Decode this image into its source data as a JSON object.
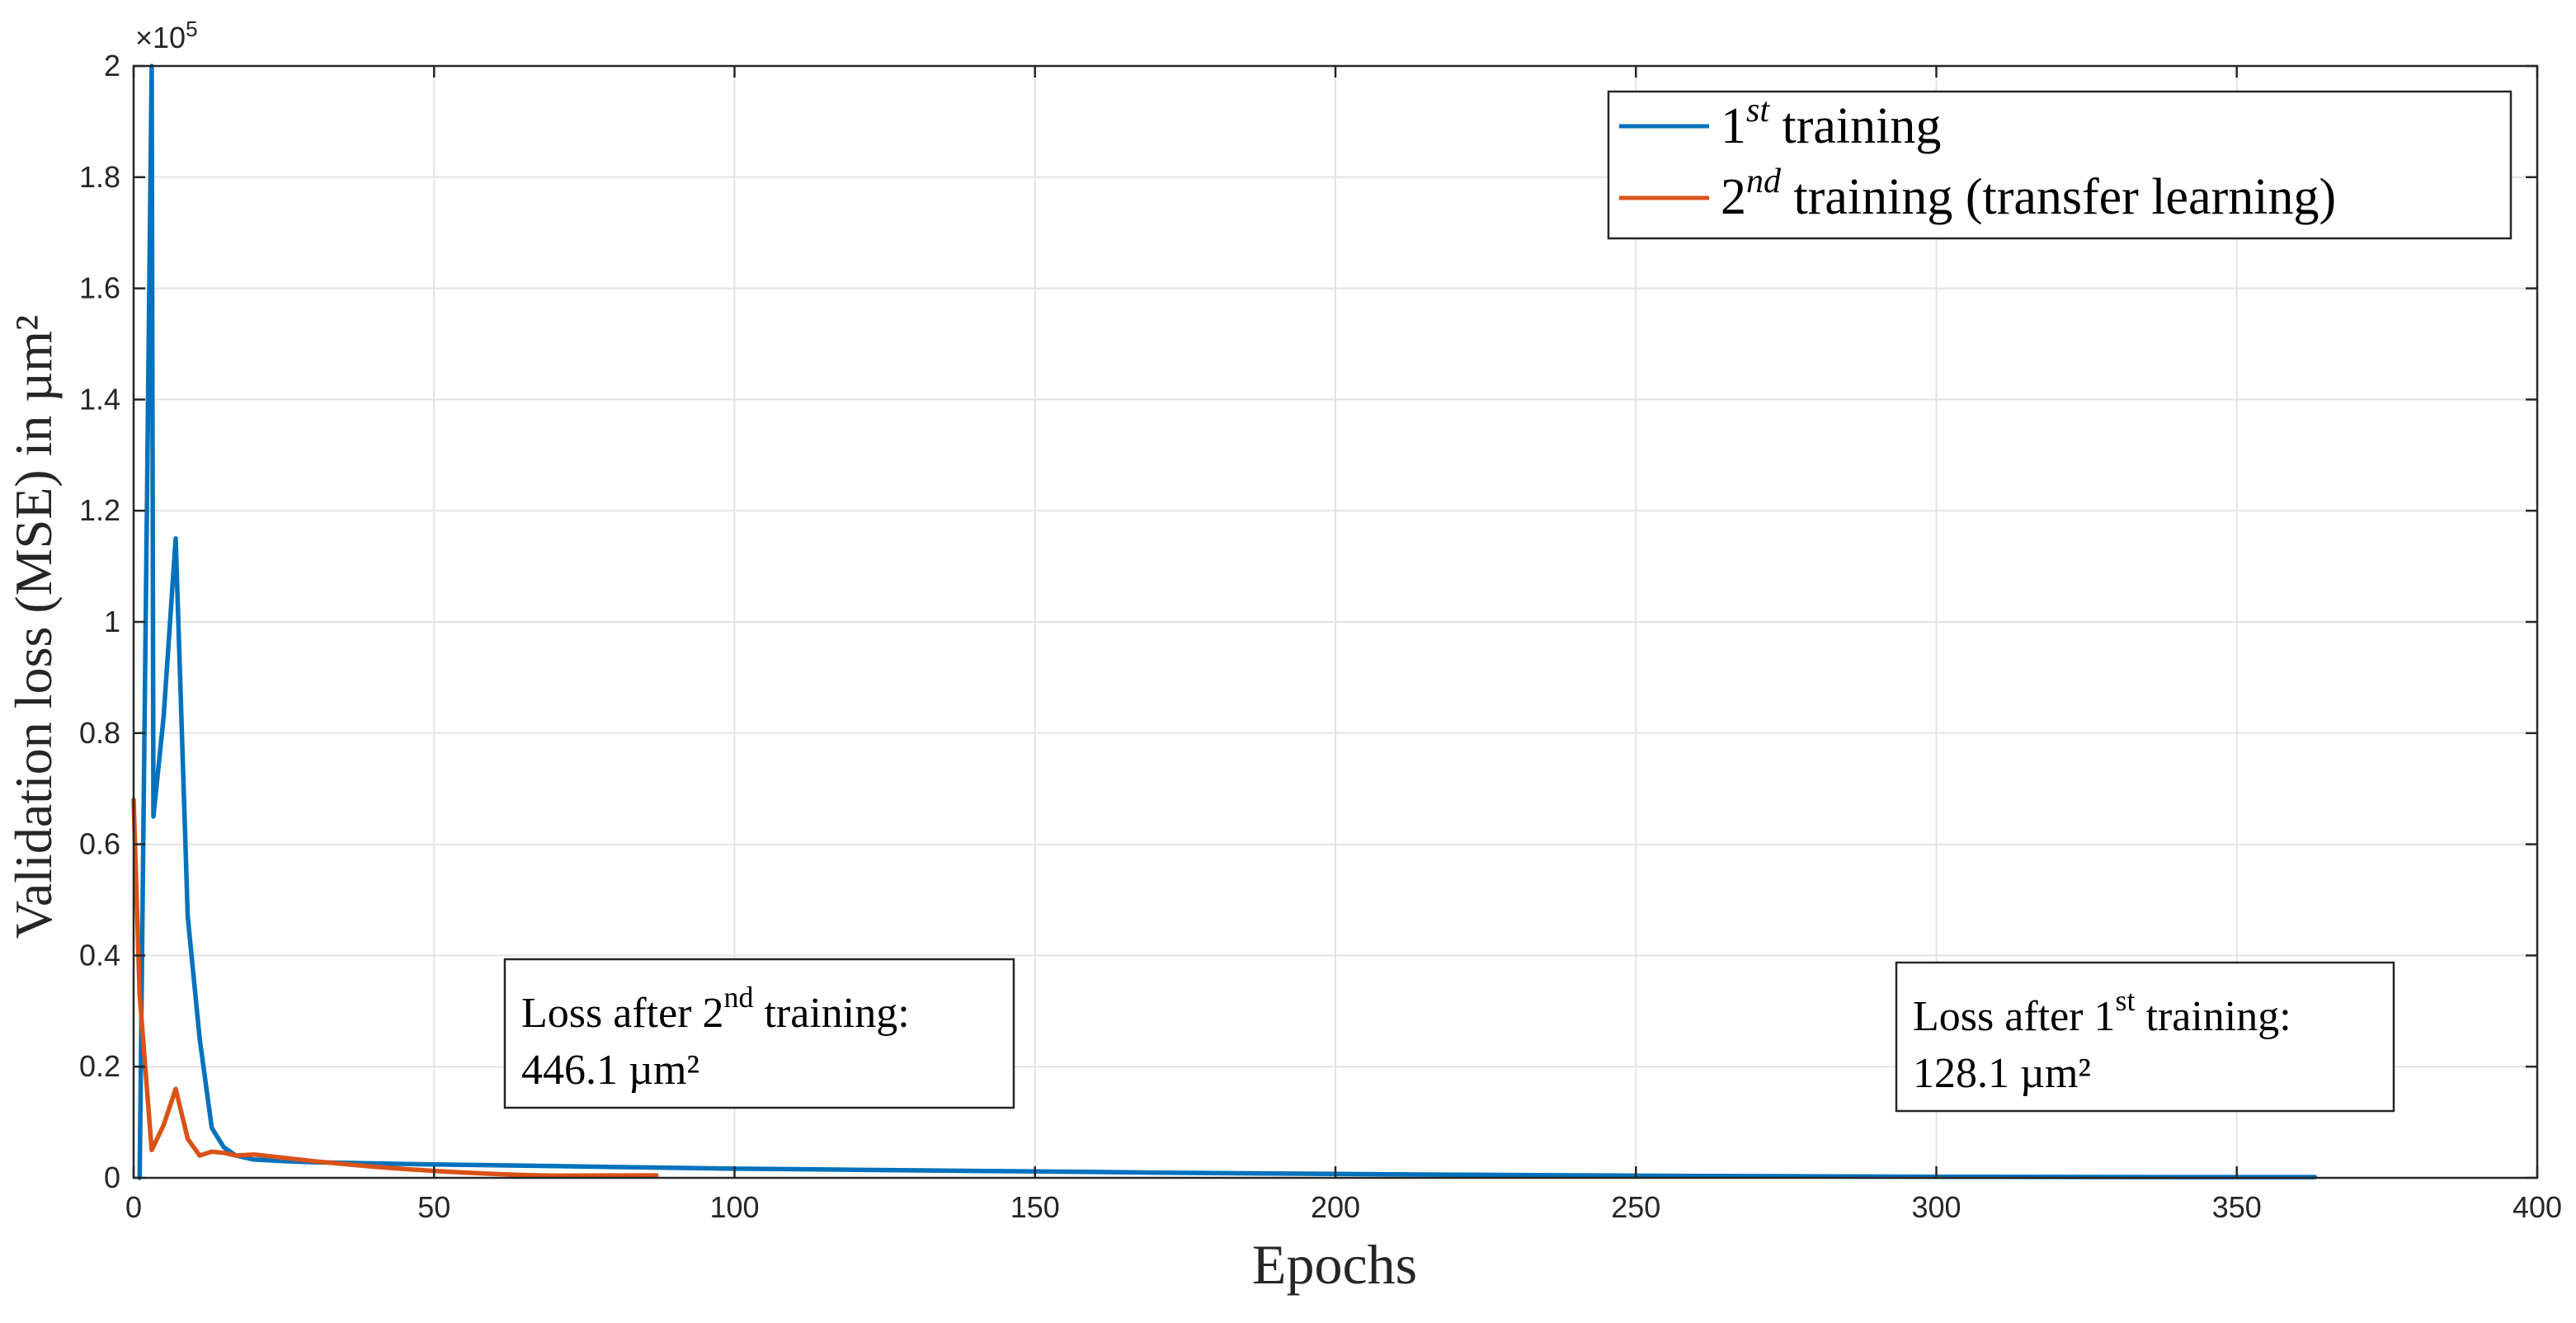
{
  "chart_data": {
    "type": "line",
    "title": "",
    "xlabel": "Epochs",
    "ylabel": "Validation loss (MSE) in µm²",
    "xlim": [
      0,
      400
    ],
    "ylim": [
      0,
      200000
    ],
    "x_ticks": [
      0,
      50,
      100,
      150,
      200,
      250,
      300,
      350,
      400
    ],
    "x_tick_labels": [
      "0",
      "50",
      "100",
      "150",
      "200",
      "250",
      "300",
      "350",
      "400"
    ],
    "y_ticks": [
      0,
      20000,
      40000,
      60000,
      80000,
      100000,
      120000,
      140000,
      160000,
      180000,
      200000
    ],
    "y_tick_labels": [
      "0",
      "0.2",
      "0.4",
      "0.6",
      "0.8",
      "1",
      "1.2",
      "1.4",
      "1.6",
      "1.8",
      "2"
    ],
    "y_exponent": {
      "prefix": "×10",
      "power": "5"
    },
    "grid": true,
    "legend_position": "top-right",
    "series": [
      {
        "name": "1st training",
        "legend": {
          "base": "1",
          "sup": "st",
          "rest": " training"
        },
        "color": "#0072BD",
        "points": [
          [
            1,
            0
          ],
          [
            3,
            200000
          ],
          [
            3.3,
            65000
          ],
          [
            5,
            83000
          ],
          [
            7,
            115000
          ],
          [
            9,
            47000
          ],
          [
            11,
            25000
          ],
          [
            13,
            9000
          ],
          [
            15,
            5500
          ],
          [
            17,
            4000
          ],
          [
            20,
            3300
          ],
          [
            25,
            3000
          ],
          [
            30,
            2800
          ],
          [
            40,
            2600
          ],
          [
            50,
            2400
          ],
          [
            60,
            2250
          ],
          [
            70,
            2100
          ],
          [
            80,
            1950
          ],
          [
            90,
            1800
          ],
          [
            100,
            1650
          ],
          [
            120,
            1450
          ],
          [
            140,
            1250
          ],
          [
            160,
            1050
          ],
          [
            180,
            850
          ],
          [
            200,
            700
          ],
          [
            220,
            560
          ],
          [
            240,
            440
          ],
          [
            260,
            340
          ],
          [
            280,
            260
          ],
          [
            300,
            200
          ],
          [
            320,
            160
          ],
          [
            340,
            140
          ],
          [
            363,
            128.1
          ]
        ]
      },
      {
        "name": "2nd training (transfer learning)",
        "legend": {
          "base": "2",
          "sup": "nd",
          "rest": " training (transfer learning)"
        },
        "color": "#D95319",
        "points": [
          [
            0,
            68000
          ],
          [
            1,
            33000
          ],
          [
            3,
            5000
          ],
          [
            5,
            9500
          ],
          [
            7,
            16000
          ],
          [
            9,
            7000
          ],
          [
            11,
            4000
          ],
          [
            13,
            4700
          ],
          [
            15,
            4500
          ],
          [
            17,
            4000
          ],
          [
            20,
            4200
          ],
          [
            25,
            3600
          ],
          [
            30,
            3000
          ],
          [
            35,
            2500
          ],
          [
            40,
            2000
          ],
          [
            45,
            1600
          ],
          [
            50,
            1250
          ],
          [
            55,
            950
          ],
          [
            60,
            700
          ],
          [
            65,
            500
          ],
          [
            70,
            380
          ],
          [
            75,
            400
          ],
          [
            80,
            430
          ],
          [
            87,
            446.1
          ]
        ]
      }
    ],
    "annotations": [
      {
        "id": "second",
        "line1_prefix": "Loss after 2",
        "line1_sup": "nd",
        "line1_suffix": " training:",
        "line2": "446.1 µm²"
      },
      {
        "id": "first",
        "line1_prefix": "Loss after 1",
        "line1_sup": "st",
        "line1_suffix": " training:",
        "line2": "128.1 µm²"
      }
    ]
  }
}
